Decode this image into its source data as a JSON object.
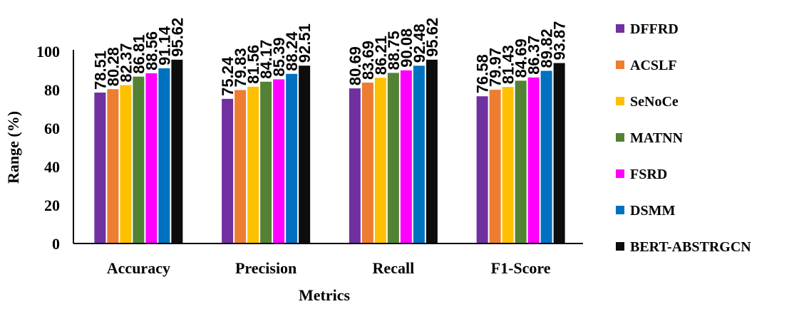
{
  "chart_data": {
    "type": "bar",
    "xlabel": "Metrics",
    "ylabel": "Range (%)",
    "ylim": [
      0,
      100
    ],
    "yticks": [
      "0",
      "20",
      "40",
      "60",
      "80",
      "100"
    ],
    "grid": false,
    "legend_position": "right",
    "categories": [
      "Accuracy",
      "Precision",
      "Recall",
      "F1-Score"
    ],
    "series": [
      {
        "name": "DFFRD",
        "color": "#7030A0",
        "values": [
          78.51,
          75.24,
          80.69,
          76.58
        ],
        "labels": [
          "78.51",
          "75.24",
          "80.69",
          "76.58"
        ]
      },
      {
        "name": "ACSLF",
        "color": "#ED7D31",
        "values": [
          80.28,
          79.83,
          83.69,
          79.97
        ],
        "labels": [
          "80.28",
          "79.83",
          "83.69",
          "79.97"
        ]
      },
      {
        "name": "SeNoCe",
        "color": "#FFC000",
        "values": [
          82.37,
          81.56,
          86.21,
          81.43
        ],
        "labels": [
          "82.37",
          "81.56",
          "86.21",
          "81.43"
        ]
      },
      {
        "name": "MATNN",
        "color": "#548235",
        "values": [
          86.81,
          84.17,
          88.75,
          84.69
        ],
        "labels": [
          "86.81",
          "84.17",
          "88.75",
          "84.69"
        ]
      },
      {
        "name": "FSRD",
        "color": "#FF00FF",
        "values": [
          88.56,
          85.39,
          90.08,
          86.37
        ],
        "labels": [
          "88.56",
          "85.39",
          "90.08",
          "86.37"
        ]
      },
      {
        "name": "DSMM",
        "color": "#0070C0",
        "values": [
          91.14,
          88.24,
          92.48,
          89.82
        ],
        "labels": [
          "91.14",
          "88.24",
          "92.48",
          "89.82"
        ]
      },
      {
        "name": "BERT-ABSTRGCN",
        "color": "#0D0D0D",
        "values": [
          95.62,
          92.51,
          95.62,
          93.87
        ],
        "labels": [
          "95.62",
          "92.51",
          "95.62",
          "93.87"
        ]
      }
    ]
  }
}
